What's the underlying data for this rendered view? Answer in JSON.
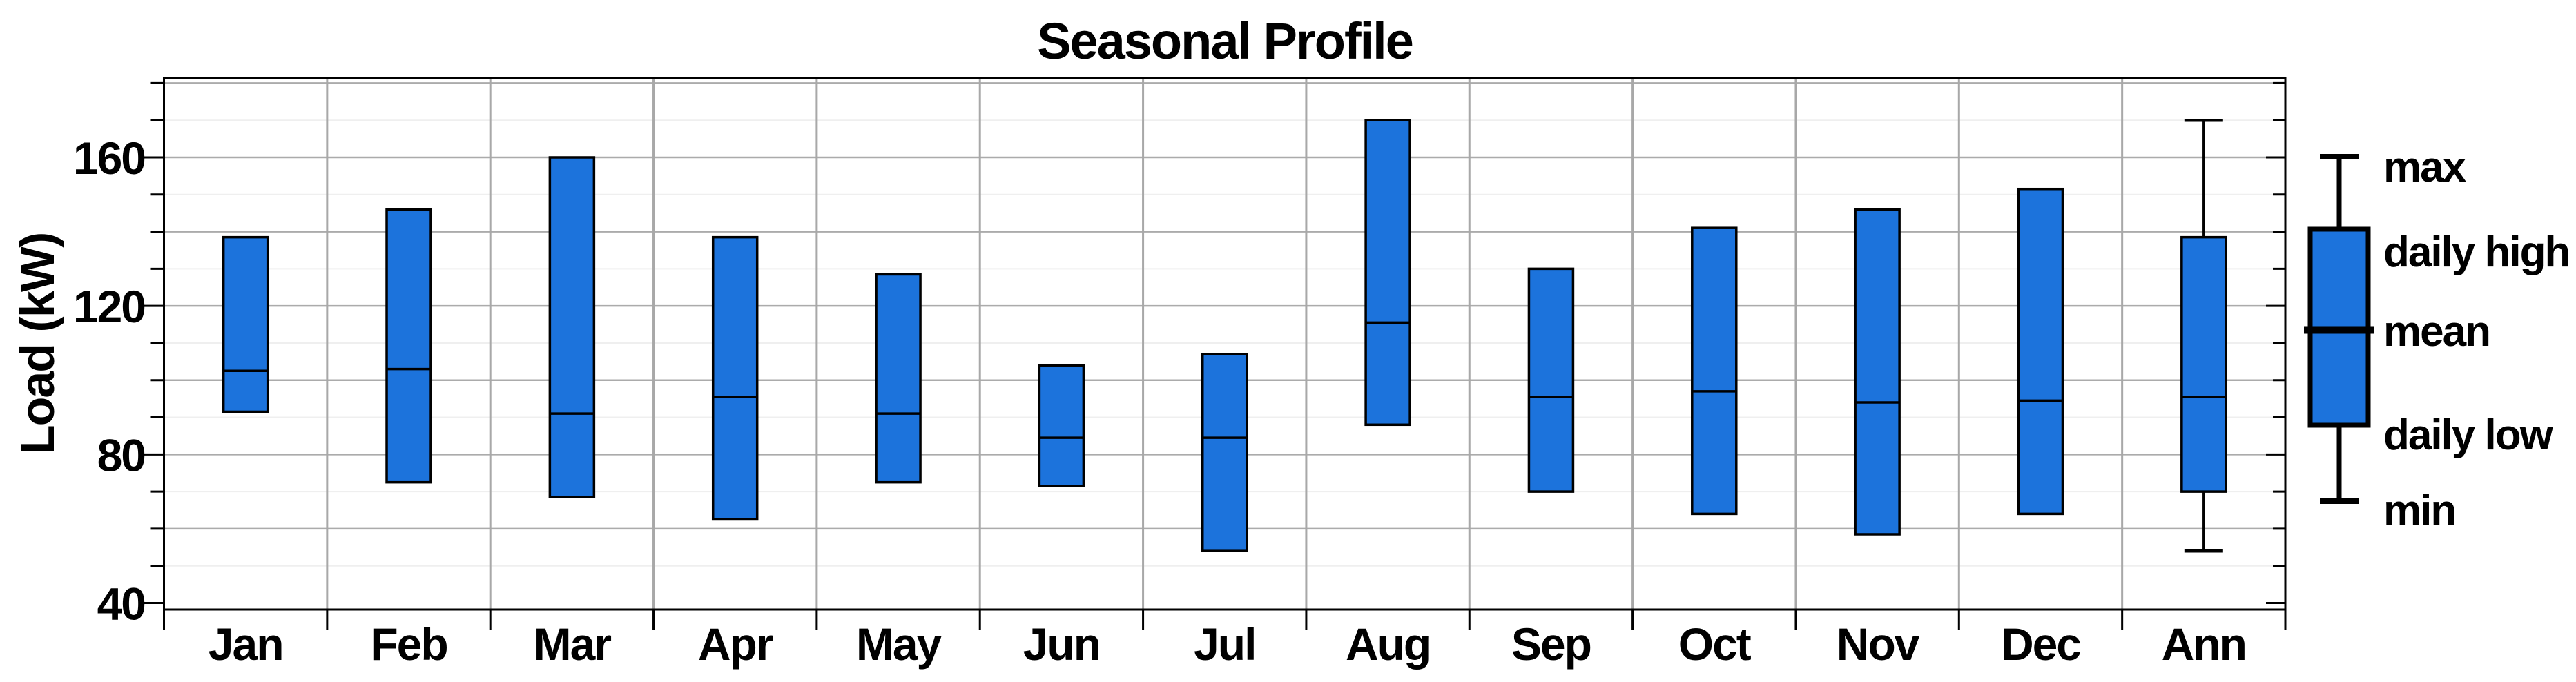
{
  "window": {
    "background_color": "#ffffff"
  },
  "chart": {
    "title": "Seasonal Profile",
    "ylabel": "Load (kW)"
  },
  "colors": {
    "box_fill": "#1C73DC",
    "box_stroke": "#000000",
    "grid_major": "#ABABAB",
    "grid_minor": "#EFEFEF",
    "category_separator": "#A8A8A8",
    "frame": "#000000",
    "text": "#000000",
    "background": "#ffffff"
  },
  "legend": {
    "labels": [
      "max",
      "daily high",
      "mean",
      "daily low",
      "min"
    ]
  },
  "chart_data": {
    "type": "box",
    "title": "Seasonal Profile",
    "xlabel": "",
    "ylabel": "Load (kW)",
    "ylim": [
      38,
      181.5
    ],
    "yticks_labeled": [
      40,
      80,
      120,
      160
    ],
    "ytick_minor_step": 10,
    "grid": "horizontal gridlines every 10 kW (light), darker every 20 kW; gray vertical separators between categories",
    "legend_position": "right",
    "legend_labels": [
      "max",
      "daily high",
      "mean",
      "daily low",
      "min"
    ],
    "categories": [
      "Jan",
      "Feb",
      "Mar",
      "Apr",
      "May",
      "Jun",
      "Jul",
      "Aug",
      "Sep",
      "Oct",
      "Nov",
      "Dec",
      "Ann"
    ],
    "boxes": [
      {
        "label": "Jan",
        "daily_high": 138.5,
        "mean": 102.5,
        "daily_low": 91.5
      },
      {
        "label": "Feb",
        "daily_high": 146,
        "mean": 103,
        "daily_low": 72.5
      },
      {
        "label": "Mar",
        "daily_high": 160,
        "mean": 91,
        "daily_low": 68.5
      },
      {
        "label": "Apr",
        "daily_high": 138.5,
        "mean": 95.5,
        "daily_low": 62.5
      },
      {
        "label": "May",
        "daily_high": 128.5,
        "mean": 91,
        "daily_low": 72.5
      },
      {
        "label": "Jun",
        "daily_high": 104,
        "mean": 84.5,
        "daily_low": 71.5
      },
      {
        "label": "Jul",
        "daily_high": 107,
        "mean": 84.5,
        "daily_low": 54
      },
      {
        "label": "Aug",
        "daily_high": 170,
        "mean": 115.5,
        "daily_low": 88
      },
      {
        "label": "Sep",
        "daily_high": 130,
        "mean": 95.5,
        "daily_low": 70
      },
      {
        "label": "Oct",
        "daily_high": 141,
        "mean": 97,
        "daily_low": 64
      },
      {
        "label": "Nov",
        "daily_high": 146,
        "mean": 94,
        "daily_low": 58.5
      },
      {
        "label": "Dec",
        "daily_high": 151.5,
        "mean": 94.5,
        "daily_low": 64
      },
      {
        "label": "Ann",
        "max": 170,
        "daily_high": 138.5,
        "mean": 95.5,
        "daily_low": 70,
        "min": 54
      }
    ]
  }
}
